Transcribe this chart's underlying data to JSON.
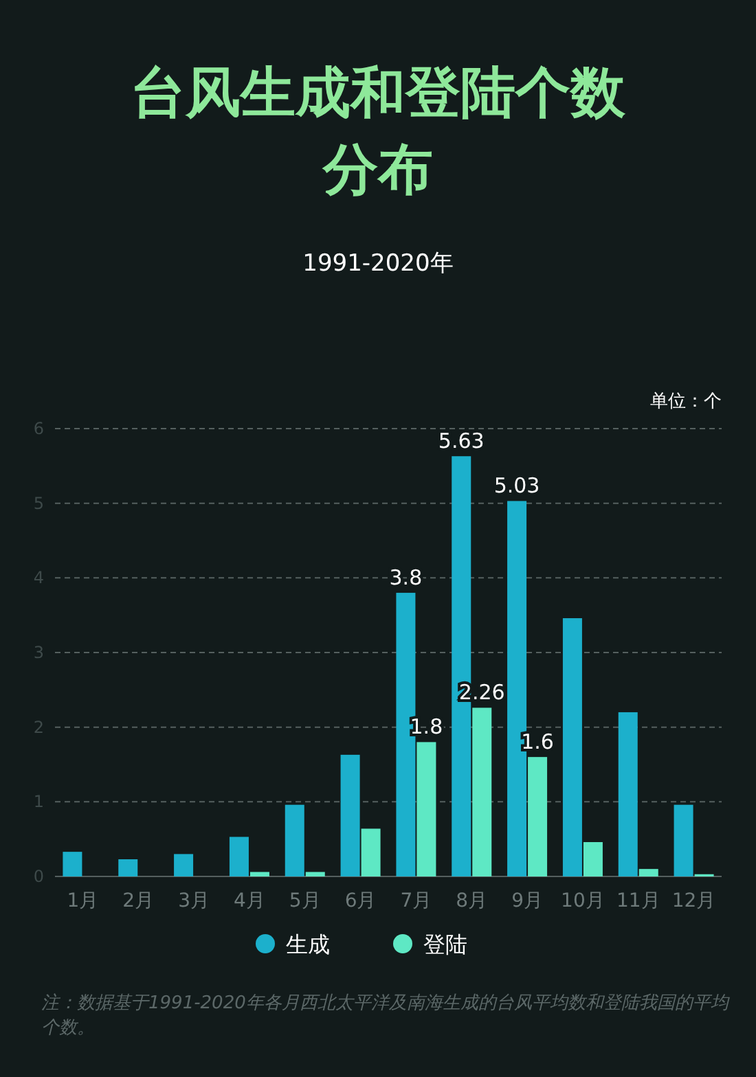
{
  "chart_data": {
    "type": "bar",
    "title": "台风生成和登陆个数分布",
    "subtitle": "1991-2020年",
    "annotations": [
      "单位：个",
      "注：数据基于1991-2020年各月西北太平洋及南海生成的台风平均数和登陆我国的平均个数。"
    ],
    "categories": [
      "1月",
      "2月",
      "3月",
      "4月",
      "5月",
      "6月",
      "7月",
      "8月",
      "9月",
      "10月",
      "11月",
      "12月"
    ],
    "series": [
      {
        "name": "生成",
        "color": "#1cb0cc",
        "values": [
          0.33,
          0.23,
          0.3,
          0.53,
          0.96,
          1.63,
          3.8,
          5.63,
          5.03,
          3.46,
          2.2,
          0.96
        ],
        "value_labels": [
          null,
          null,
          null,
          null,
          null,
          null,
          "3.8",
          "5.63",
          "5.03",
          null,
          null,
          null
        ]
      },
      {
        "name": "登陆",
        "color": "#5ee8c4",
        "values": [
          0,
          0,
          0,
          0.06,
          0.06,
          0.64,
          1.8,
          2.26,
          1.6,
          0.46,
          0.1,
          0.03
        ],
        "value_labels": [
          null,
          null,
          null,
          null,
          null,
          null,
          "1.8",
          "2.26",
          "1.6",
          null,
          null,
          null
        ]
      }
    ],
    "ylim": [
      0,
      6
    ],
    "yticks": [
      0,
      1,
      2,
      3,
      4,
      5,
      6
    ],
    "grid": "y",
    "legend": "bottom"
  }
}
